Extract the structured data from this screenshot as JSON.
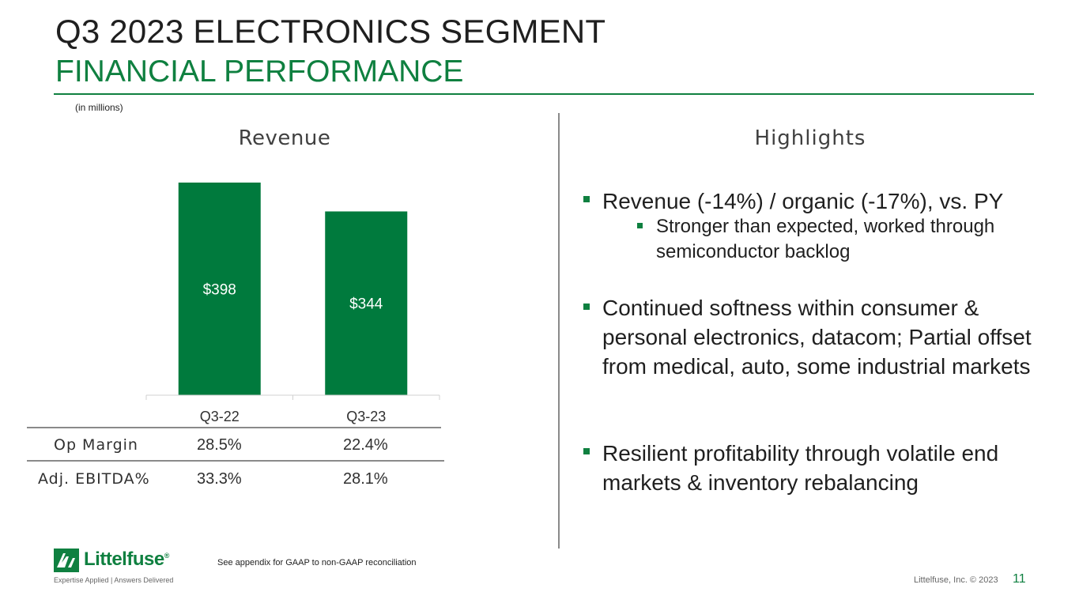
{
  "header": {
    "title": "Q3 2023 ELECTRONICS SEGMENT",
    "subtitle": "FINANCIAL PERFORMANCE",
    "units_note": "(in millions)"
  },
  "chart_data": {
    "type": "bar",
    "title": "Revenue",
    "categories": [
      "Q3-22",
      "Q3-23"
    ],
    "values": [
      398,
      344
    ],
    "data_labels": [
      "$398",
      "$344"
    ],
    "ylim": [
      0,
      398
    ],
    "xlabel": "",
    "ylabel": "",
    "bar_color": "#007a3d"
  },
  "metrics_table": {
    "rows": [
      {
        "label": "Op Margin",
        "values": [
          "28.5%",
          "22.4%"
        ]
      },
      {
        "label": "Adj. EBITDA%",
        "values": [
          "33.3%",
          "28.1%"
        ]
      }
    ]
  },
  "highlights": {
    "title": "Highlights",
    "items": [
      {
        "text": "Revenue (-14%) / organic (-17%), vs. PY",
        "sub_items": [
          "Stronger than expected, worked through semiconductor backlog"
        ]
      },
      {
        "text": "Continued softness within consumer & personal electronics, datacom; Partial offset from medical, auto, some industrial markets"
      },
      {
        "text": "Resilient profitability through volatile end markets & inventory rebalancing"
      }
    ]
  },
  "footer": {
    "logo_text": "Littelfuse",
    "logo_reg": "®",
    "logo_tagline": "Expertise Applied | Answers Delivered",
    "footnote": "See appendix for GAAP to non-GAAP reconciliation",
    "copyright": "Littelfuse, Inc. © 2023",
    "page_number": "11"
  },
  "colors": {
    "brand_green": "#0f8040",
    "title_text": "#1f1f1f",
    "rule_gray": "#8a8a8a"
  }
}
